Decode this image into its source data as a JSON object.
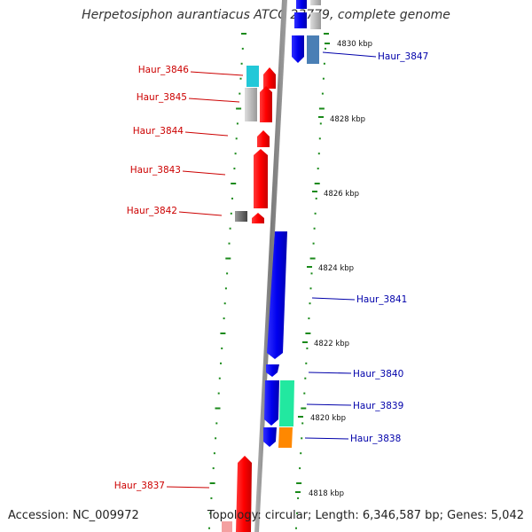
{
  "title": "Herpetosiphon aurantiacus ATCC 23779, complete genome",
  "footer": {
    "accession": "Accession: NC_009972",
    "summary": "Topology: circular; Length: 6,346,587 bp; Genes: 5,042"
  },
  "scale_labels": [
    "4830 kbp",
    "4828 kbp",
    "4826 kbp",
    "4824 kbp",
    "4822 kbp",
    "4820 kbp",
    "4818 kbp"
  ],
  "genes_reverse": [
    {
      "name": "Haur_3846",
      "color": "#ff0000"
    },
    {
      "name": "Haur_3845",
      "color": "#ff0000"
    },
    {
      "name": "Haur_3844",
      "color": "#ff0000"
    },
    {
      "name": "Haur_3843",
      "color": "#ff0000"
    },
    {
      "name": "Haur_3842",
      "color": "#ff0000"
    },
    {
      "name": "Haur_3837",
      "color": "#ff0000"
    }
  ],
  "genes_forward": [
    {
      "name": "Haur_3847",
      "color": "#0000ee"
    },
    {
      "name": "Haur_3841",
      "color": "#0000ee"
    },
    {
      "name": "Haur_3840",
      "color": "#0000ee"
    },
    {
      "name": "Haur_3839",
      "color": "#0000ee"
    },
    {
      "name": "Haur_3838",
      "color": "#0000ee"
    }
  ],
  "colors": {
    "reverse_label": "#cc0000",
    "forward_label": "#0000aa",
    "backbone": "#888888",
    "tick": "#1a8a1a",
    "cds_reverse": "#ff0000",
    "cds_forward": "#0000ee",
    "feature_cyan": "#22c8d8",
    "feature_green": "#22e8a0",
    "feature_orange": "#ff8800",
    "feature_grey": "#bbbbbb",
    "feature_steel": "#4a7fb5"
  }
}
